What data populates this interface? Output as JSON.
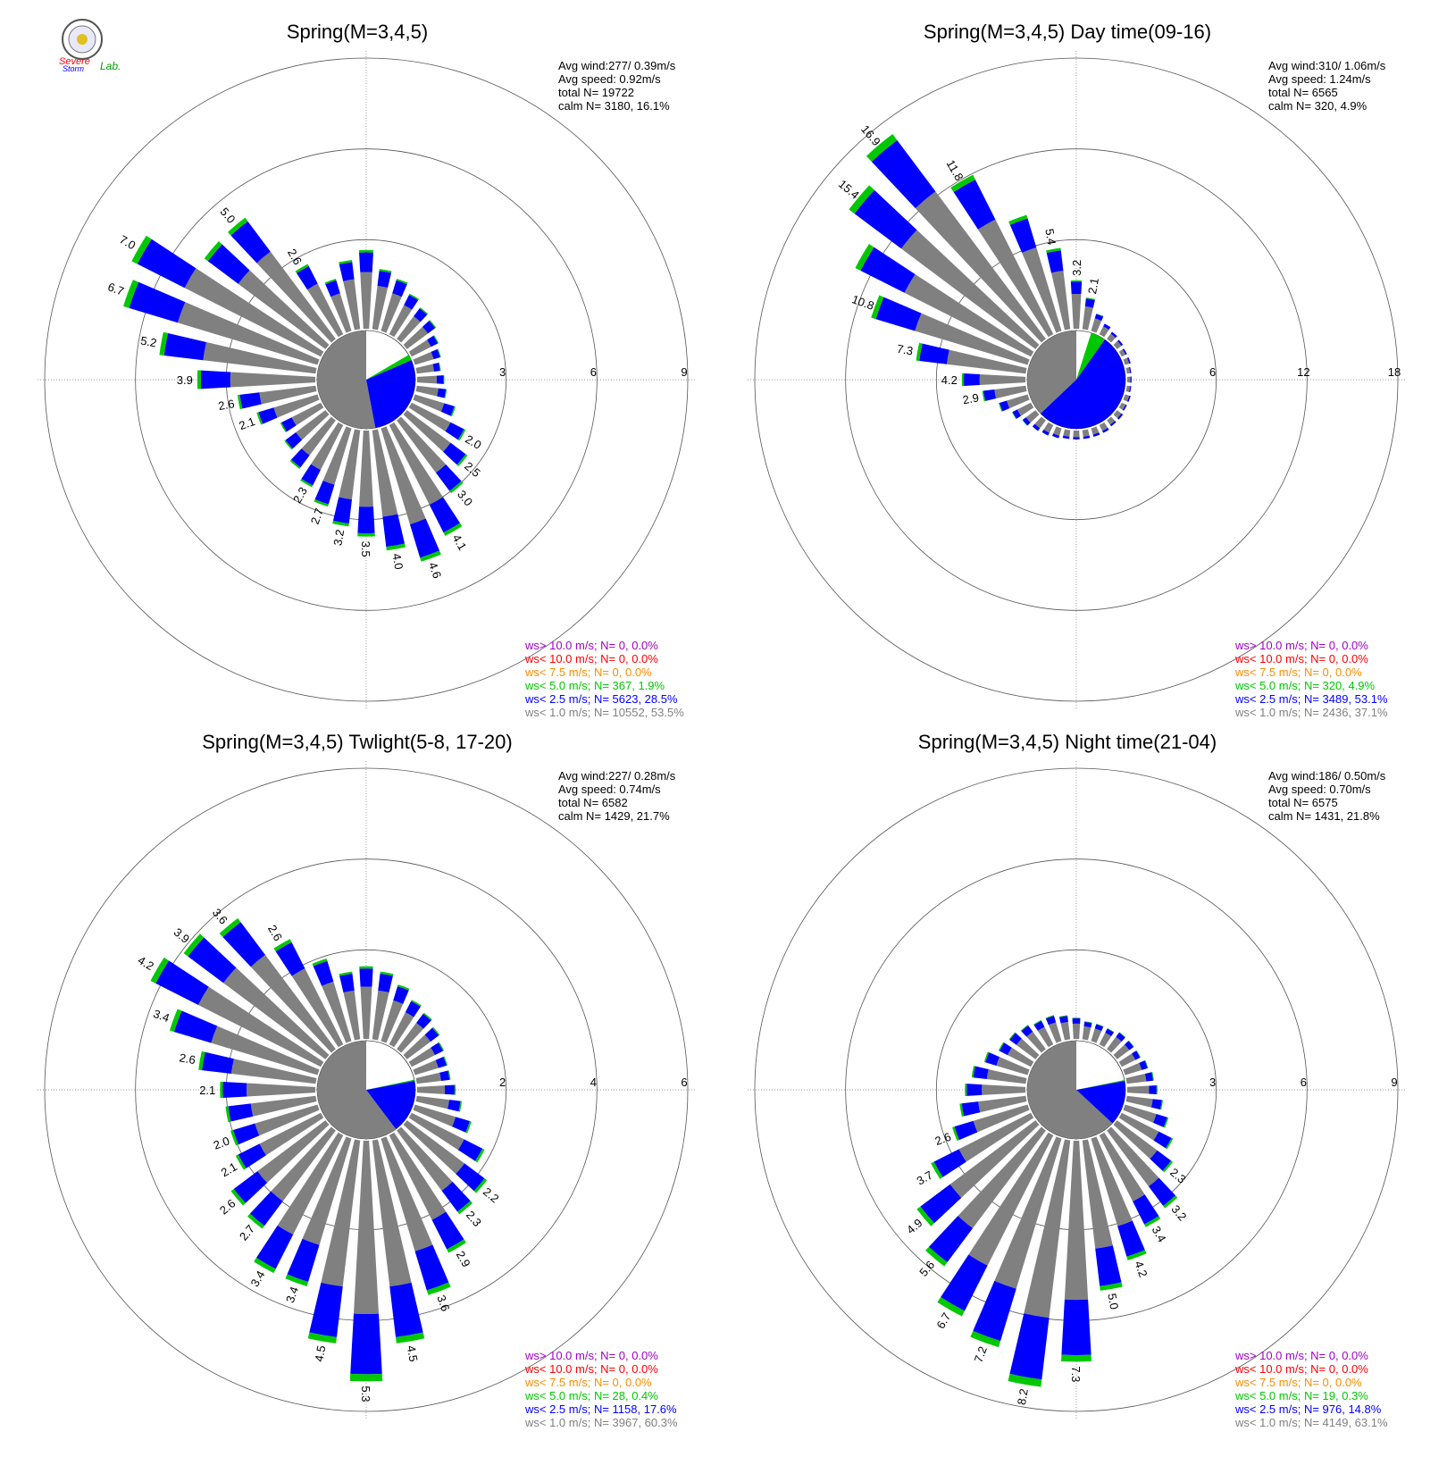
{
  "logo": {
    "name": "Severe Storm Lab.",
    "word1": "Severe",
    "word2": "Storm",
    "word3": "Lab."
  },
  "colors": {
    "gt10": "#a000c8",
    "lt10": "#ff0000",
    "lt75": "#ff8c00",
    "lt5": "#00c800",
    "lt25": "#0000ff",
    "lt1": "#808080"
  },
  "chart_data": [
    {
      "type": "wind-rose",
      "title": "Spring(M=3,4,5)",
      "rings": [
        3,
        6,
        9
      ],
      "stats": [
        "Avg wind:277/ 0.39m/s",
        "Avg speed: 0.92m/s",
        "total N=      19722",
        "calm N=   3180,  16.1%"
      ],
      "calm_split": [
        {
          "color": "lt1",
          "frac": 0.53
        },
        {
          "color": "lt25",
          "frac": 0.285
        },
        {
          "color": "lt5",
          "frac": 0.019
        }
      ],
      "directions": [
        "E",
        "ENE",
        "NE",
        "NNE",
        "N",
        "NNW",
        "NW",
        "WNW",
        "W",
        "WSW",
        "SW",
        "SSW",
        "S",
        "SSE",
        "SE",
        "ESE"
      ],
      "sector_labels": [
        {
          "dir": "S",
          "label": "4.6"
        },
        {
          "dir": "SSE",
          "label": "4.1"
        },
        {
          "dir": "SSW",
          "label": "4.0"
        },
        {
          "dir": "SE",
          "label": "3.0"
        },
        {
          "dir": "SW",
          "label": "3.5"
        },
        {
          "dir": "ESE",
          "label": "2.5"
        },
        {
          "dir": "WSW",
          "label": "3.2"
        },
        {
          "dir": "E",
          "label": "2.0"
        },
        {
          "dir": "W",
          "label": "2.7"
        },
        {
          "dir": "NW",
          "label": "7.0"
        },
        {
          "dir": "WNW",
          "label": "6.7"
        },
        {
          "dir": "NNW",
          "label": "5.0"
        },
        {
          "dir": "N",
          "label": "2.6"
        },
        {
          "dir": "ENE",
          "label": "5.2"
        },
        {
          "dir": "NE",
          "label": "3.9"
        },
        {
          "dir": "NNE",
          "label": "2.6"
        }
      ],
      "legend": [
        {
          "key": "gt10",
          "text": "ws> 10.0 m/s; N=    0,  0.0%"
        },
        {
          "key": "lt10",
          "text": "ws< 10.0 m/s; N=    0,  0.0%"
        },
        {
          "key": "lt75",
          "text": "ws<  7.5 m/s; N=    0,  0.0%"
        },
        {
          "key": "lt5",
          "text": "ws<  5.0 m/s; N=   367,  1.9%"
        },
        {
          "key": "lt25",
          "text": "ws<  2.5 m/s; N=  5623, 28.5%"
        },
        {
          "key": "lt1",
          "text": "ws<  1.0 m/s; N= 10552, 53.5%"
        }
      ]
    },
    {
      "type": "wind-rose",
      "title": "Spring(M=3,4,5) Day time(09-16)",
      "rings": [
        6,
        12,
        18
      ],
      "stats": [
        "Avg wind:310/ 1.06m/s",
        "Avg speed: 1.24m/s",
        "total N=       6565",
        "calm N=    320,   4.9%"
      ],
      "directions": [
        "E",
        "ENE",
        "NE",
        "NNE",
        "N",
        "NNW",
        "NW",
        "WNW",
        "W"
      ],
      "sector_labels": [
        {
          "dir": "NW",
          "label": "16.9"
        },
        {
          "dir": "WNW",
          "label": "15.4"
        },
        {
          "dir": "NNW",
          "label": "11.8"
        },
        {
          "dir": "W",
          "label": "10.8"
        },
        {
          "dir": "WSW",
          "label": "7.3"
        },
        {
          "dir": "N",
          "label": "5.4"
        },
        {
          "dir": "NNE",
          "label": "3.2"
        },
        {
          "dir": "NE",
          "label": "2.1"
        },
        {
          "dir": "SW",
          "label": "4.2"
        },
        {
          "dir": "SSW",
          "label": "2.9"
        }
      ],
      "legend": [
        {
          "key": "gt10",
          "text": "ws> 10.0 m/s; N=    0,  0.0%"
        },
        {
          "key": "lt10",
          "text": "ws< 10.0 m/s; N=    0,  0.0%"
        },
        {
          "key": "lt75",
          "text": "ws<  7.5 m/s; N=    0,  0.0%"
        },
        {
          "key": "lt5",
          "text": "ws<  5.0 m/s; N=   320,  4.9%"
        },
        {
          "key": "lt25",
          "text": "ws<  2.5 m/s; N=  3489, 53.1%"
        },
        {
          "key": "lt1",
          "text": "ws<  1.0 m/s; N=  2436, 37.1%"
        }
      ]
    },
    {
      "type": "wind-rose",
      "title": "Spring(M=3,4,5) Twlight(5-8, 17-20)",
      "rings": [
        2,
        4,
        6
      ],
      "stats": [
        "Avg wind:227/ 0.28m/s",
        "Avg speed: 0.74m/s",
        "total N=       6582",
        "calm N=   1429,  21.7%"
      ],
      "sector_labels": [
        {
          "dir": "S",
          "label": "5.3"
        },
        {
          "dir": "SSW",
          "label": "4.5"
        },
        {
          "dir": "SSE",
          "label": "4.5"
        },
        {
          "dir": "SE",
          "label": "3.6"
        },
        {
          "dir": "ESE",
          "label": "2.9"
        },
        {
          "dir": "E",
          "label": "2.3"
        },
        {
          "dir": "ENE",
          "label": "2.2"
        },
        {
          "dir": "SW",
          "label": "3.4"
        },
        {
          "dir": "WSW",
          "label": "3.4"
        },
        {
          "dir": "W",
          "label": "2.7"
        },
        {
          "dir": "WNW",
          "label": "2.6"
        },
        {
          "dir": "NW",
          "label": "2.1"
        },
        {
          "dir": "NNW",
          "label": "2.0"
        },
        {
          "dir": "N",
          "label": "2.1"
        },
        {
          "dir": "NNE",
          "label": "2.6"
        },
        {
          "dir": "NE",
          "label": "3.4"
        },
        {
          "dir": "ENE2",
          "label": "4.2"
        },
        {
          "dir": "E2",
          "label": "3.9"
        },
        {
          "dir": "ESE2",
          "label": "3.6"
        },
        {
          "dir": "SE2",
          "label": "2.6"
        }
      ],
      "legend": [
        {
          "key": "gt10",
          "text": "ws> 10.0 m/s; N=    0,  0.0%"
        },
        {
          "key": "lt10",
          "text": "ws< 10.0 m/s; N=    0,  0.0%"
        },
        {
          "key": "lt75",
          "text": "ws<  7.5 m/s; N=    0,  0.0%"
        },
        {
          "key": "lt5",
          "text": "ws<  5.0 m/s; N=    28,  0.4%"
        },
        {
          "key": "lt25",
          "text": "ws<  2.5 m/s; N=  1158, 17.6%"
        },
        {
          "key": "lt1",
          "text": "ws<  1.0 m/s; N=  3967, 60.3%"
        }
      ]
    },
    {
      "type": "wind-rose",
      "title": "Spring(M=3,4,5) Night time(21-04)",
      "rings": [
        3,
        6,
        9
      ],
      "stats": [
        "Avg wind:186/ 0.50m/s",
        "Avg speed: 0.70m/s",
        "total N=       6575",
        "calm N=   1431,  21.8%"
      ],
      "sector_labels": [
        {
          "dir": "S",
          "label": "8.2"
        },
        {
          "dir": "SSE",
          "label": "7.3"
        },
        {
          "dir": "SSW",
          "label": "7.2"
        },
        {
          "dir": "SW",
          "label": "6.7"
        },
        {
          "dir": "WSW",
          "label": "5.6"
        },
        {
          "dir": "W",
          "label": "4.9"
        },
        {
          "dir": "WNW",
          "label": "3.7"
        },
        {
          "dir": "NW",
          "label": "2.6"
        },
        {
          "dir": "SE",
          "label": "5.0"
        },
        {
          "dir": "ESE",
          "label": "4.2"
        },
        {
          "dir": "E",
          "label": "3.4"
        },
        {
          "dir": "ENE",
          "label": "3.2"
        },
        {
          "dir": "NE",
          "label": "2.3"
        }
      ],
      "legend": [
        {
          "key": "gt10",
          "text": "ws> 10.0 m/s; N=    0,  0.0%"
        },
        {
          "key": "lt10",
          "text": "ws< 10.0 m/s; N=    0,  0.0%"
        },
        {
          "key": "lt75",
          "text": "ws<  7.5 m/s; N=    0,  0.0%"
        },
        {
          "key": "lt5",
          "text": "ws<  5.0 m/s; N=    19,  0.3%"
        },
        {
          "key": "lt25",
          "text": "ws<  2.5 m/s; N=   976, 14.8%"
        },
        {
          "key": "lt1",
          "text": "ws<  1.0 m/s; N=  4149, 63.1%"
        }
      ]
    }
  ]
}
